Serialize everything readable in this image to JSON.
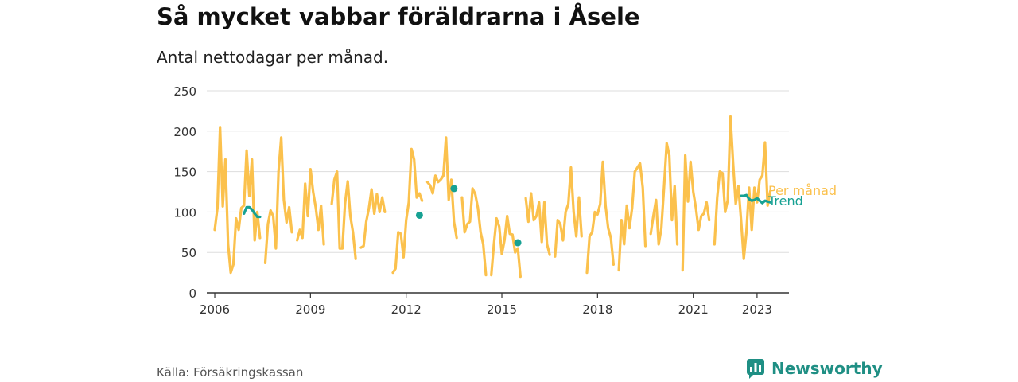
{
  "header": {
    "title": "Så mycket vabbar föräldrarna i Åsele",
    "subtitle": "Antal nettodagar per månad."
  },
  "footer": {
    "source": "Källa: Försäkringskassan",
    "brand": "Newsworthy",
    "brand_icon": "bar-chart-speech-bubble-icon"
  },
  "colors": {
    "monthly": "#fbc14d",
    "trend": "#17a193",
    "grid": "#dddddd",
    "axis": "#333333"
  },
  "chart_data": {
    "type": "line",
    "title": "Så mycket vabbar föräldrarna i Åsele",
    "subtitle": "Antal nettodagar per månad.",
    "xlim": [
      2005.75,
      2024.0
    ],
    "ylim": [
      0,
      250
    ],
    "yticks": [
      0,
      50,
      100,
      150,
      200,
      250
    ],
    "xticks": [
      2006,
      2009,
      2012,
      2015,
      2018,
      2021,
      2023
    ],
    "grid": true,
    "legend": "inline-right",
    "series": [
      {
        "name": "Per månad",
        "color": "#fbc14d",
        "points": [
          [
            2006.0,
            78
          ],
          [
            2006.083,
            105
          ],
          [
            2006.167,
            205
          ],
          [
            2006.25,
            107
          ],
          [
            2006.333,
            165
          ],
          [
            2006.417,
            60
          ],
          [
            2006.5,
            25
          ],
          [
            2006.583,
            35
          ],
          [
            2006.667,
            92
          ],
          [
            2006.75,
            78
          ],
          [
            2006.833,
            105
          ],
          [
            2006.917,
            108
          ],
          [
            2007.0,
            176
          ],
          [
            2007.083,
            120
          ],
          [
            2007.167,
            165
          ],
          [
            2007.25,
            65
          ],
          [
            2007.333,
            100
          ],
          [
            2007.417,
            68
          ],
          null,
          [
            2007.583,
            37
          ],
          [
            2007.667,
            85
          ],
          [
            2007.75,
            102
          ],
          [
            2007.833,
            95
          ],
          [
            2007.917,
            55
          ],
          [
            2008.0,
            150
          ],
          [
            2008.083,
            192
          ],
          [
            2008.167,
            115
          ],
          [
            2008.25,
            87
          ],
          [
            2008.333,
            106
          ],
          [
            2008.417,
            75
          ],
          null,
          [
            2008.583,
            65
          ],
          [
            2008.667,
            78
          ],
          [
            2008.75,
            68
          ],
          [
            2008.833,
            135
          ],
          [
            2008.917,
            95
          ],
          [
            2009.0,
            153
          ],
          [
            2009.083,
            125
          ],
          [
            2009.167,
            105
          ],
          [
            2009.25,
            78
          ],
          [
            2009.333,
            108
          ],
          [
            2009.417,
            60
          ],
          null,
          [
            2009.667,
            110
          ],
          [
            2009.75,
            140
          ],
          [
            2009.833,
            150
          ],
          [
            2009.917,
            55
          ],
          [
            2010.0,
            55
          ],
          [
            2010.083,
            110
          ],
          [
            2010.167,
            138
          ],
          [
            2010.25,
            95
          ],
          [
            2010.333,
            75
          ],
          [
            2010.417,
            42
          ],
          null,
          [
            2010.583,
            56
          ],
          [
            2010.667,
            58
          ],
          [
            2010.75,
            88
          ],
          [
            2010.833,
            105
          ],
          [
            2010.917,
            128
          ],
          [
            2011.0,
            98
          ],
          [
            2011.083,
            122
          ],
          [
            2011.167,
            100
          ],
          [
            2011.25,
            118
          ],
          [
            2011.333,
            100
          ],
          null,
          [
            2011.583,
            25
          ],
          [
            2011.667,
            30
          ],
          [
            2011.75,
            75
          ],
          [
            2011.833,
            73
          ],
          [
            2011.917,
            44
          ],
          [
            2012.0,
            90
          ],
          [
            2012.083,
            112
          ],
          [
            2012.167,
            178
          ],
          [
            2012.25,
            165
          ],
          [
            2012.333,
            118
          ],
          [
            2012.417,
            123
          ],
          [
            2012.5,
            114
          ],
          null,
          [
            2012.667,
            137
          ],
          [
            2012.75,
            133
          ],
          [
            2012.833,
            123
          ],
          [
            2012.917,
            145
          ],
          [
            2013.0,
            137
          ],
          [
            2013.083,
            140
          ],
          [
            2013.167,
            145
          ],
          [
            2013.25,
            192
          ],
          [
            2013.333,
            115
          ],
          [
            2013.417,
            140
          ],
          [
            2013.5,
            88
          ],
          [
            2013.583,
            68
          ],
          null,
          [
            2013.75,
            118
          ],
          [
            2013.833,
            75
          ],
          [
            2013.917,
            85
          ],
          [
            2014.0,
            88
          ],
          [
            2014.083,
            129
          ],
          [
            2014.167,
            122
          ],
          [
            2014.25,
            105
          ],
          [
            2014.333,
            75
          ],
          [
            2014.417,
            60
          ],
          [
            2014.5,
            22
          ],
          null,
          [
            2014.667,
            22
          ],
          [
            2014.75,
            60
          ],
          [
            2014.833,
            92
          ],
          [
            2014.917,
            82
          ],
          [
            2015.0,
            48
          ],
          [
            2015.083,
            65
          ],
          [
            2015.167,
            95
          ],
          [
            2015.25,
            73
          ],
          [
            2015.333,
            72
          ],
          [
            2015.417,
            50
          ],
          [
            2015.5,
            55
          ],
          [
            2015.583,
            20
          ],
          null,
          [
            2015.75,
            117
          ],
          [
            2015.833,
            88
          ],
          [
            2015.917,
            123
          ],
          [
            2016.0,
            90
          ],
          [
            2016.083,
            95
          ],
          [
            2016.167,
            112
          ],
          [
            2016.25,
            63
          ],
          [
            2016.333,
            112
          ],
          [
            2016.417,
            60
          ],
          [
            2016.5,
            47
          ],
          null,
          [
            2016.667,
            45
          ],
          [
            2016.75,
            90
          ],
          [
            2016.833,
            85
          ],
          [
            2016.917,
            65
          ],
          [
            2017.0,
            100
          ],
          [
            2017.083,
            110
          ],
          [
            2017.167,
            155
          ],
          [
            2017.25,
            100
          ],
          [
            2017.333,
            70
          ],
          [
            2017.417,
            118
          ],
          [
            2017.5,
            70
          ],
          null,
          [
            2017.667,
            25
          ],
          [
            2017.75,
            70
          ],
          [
            2017.833,
            75
          ],
          [
            2017.917,
            100
          ],
          [
            2018.0,
            97
          ],
          [
            2018.083,
            110
          ],
          [
            2018.167,
            162
          ],
          [
            2018.25,
            108
          ],
          [
            2018.333,
            80
          ],
          [
            2018.417,
            68
          ],
          [
            2018.5,
            35
          ],
          null,
          [
            2018.667,
            28
          ],
          [
            2018.75,
            90
          ],
          [
            2018.833,
            60
          ],
          [
            2018.917,
            108
          ],
          [
            2019.0,
            80
          ],
          [
            2019.083,
            105
          ],
          [
            2019.167,
            150
          ],
          [
            2019.25,
            155
          ],
          [
            2019.333,
            160
          ],
          [
            2019.417,
            130
          ],
          [
            2019.5,
            58
          ],
          null,
          [
            2019.667,
            73
          ],
          [
            2019.75,
            95
          ],
          [
            2019.833,
            115
          ],
          [
            2019.917,
            60
          ],
          [
            2020.0,
            80
          ],
          [
            2020.083,
            130
          ],
          [
            2020.167,
            185
          ],
          [
            2020.25,
            170
          ],
          [
            2020.333,
            90
          ],
          [
            2020.417,
            132
          ],
          [
            2020.5,
            60
          ],
          null,
          [
            2020.667,
            28
          ],
          [
            2020.75,
            170
          ],
          [
            2020.833,
            113
          ],
          [
            2020.917,
            162
          ],
          [
            2021.0,
            125
          ],
          [
            2021.083,
            105
          ],
          [
            2021.167,
            78
          ],
          [
            2021.25,
            95
          ],
          [
            2021.333,
            98
          ],
          [
            2021.417,
            112
          ],
          [
            2021.5,
            90
          ],
          null,
          [
            2021.667,
            60
          ],
          [
            2021.75,
            118
          ],
          [
            2021.833,
            150
          ],
          [
            2021.917,
            148
          ],
          [
            2022.0,
            100
          ],
          [
            2022.083,
            115
          ],
          [
            2022.167,
            218
          ],
          [
            2022.25,
            160
          ],
          [
            2022.333,
            110
          ],
          [
            2022.417,
            132
          ],
          [
            2022.5,
            90
          ],
          [
            2022.583,
            42
          ],
          [
            2022.667,
            75
          ],
          [
            2022.75,
            130
          ],
          [
            2022.833,
            78
          ],
          [
            2022.917,
            130
          ],
          [
            2023.0,
            112
          ],
          [
            2023.083,
            140
          ],
          [
            2023.167,
            145
          ],
          [
            2023.25,
            186
          ],
          [
            2023.333,
            108
          ],
          [
            2023.417,
            126
          ]
        ]
      },
      {
        "name": "Trend",
        "color": "#17a193",
        "points": [
          [
            2006.917,
            98
          ],
          [
            2007.0,
            106
          ],
          [
            2007.083,
            106
          ],
          [
            2007.167,
            103
          ],
          [
            2007.25,
            98
          ],
          [
            2007.333,
            94
          ],
          [
            2007.417,
            94
          ],
          null,
          [
            2012.417,
            96
          ],
          null,
          [
            2013.5,
            129
          ],
          null,
          [
            2015.5,
            62
          ],
          null,
          [
            2022.5,
            120
          ],
          [
            2022.583,
            120
          ],
          [
            2022.667,
            121
          ],
          [
            2022.75,
            116
          ],
          [
            2022.833,
            114
          ],
          [
            2022.917,
            115
          ],
          [
            2023.0,
            117
          ],
          [
            2023.083,
            114
          ],
          [
            2023.167,
            111
          ],
          [
            2023.25,
            114
          ],
          [
            2023.333,
            113
          ],
          [
            2023.417,
            112
          ]
        ]
      }
    ]
  }
}
